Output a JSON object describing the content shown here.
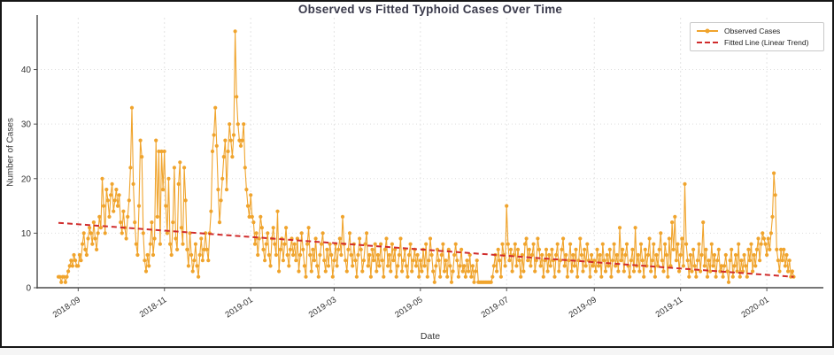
{
  "chart_data": {
    "type": "line",
    "title": "Observed vs Fitted Typhoid Cases Over Time",
    "xlabel": "Date",
    "ylabel": "Number of Cases",
    "x_start_date": "2018-08-18",
    "x_interval_days": 1,
    "xlim": [
      "2018-08-03",
      "2020-02-10"
    ],
    "ylim": [
      0,
      49.5
    ],
    "y_ticks": [
      0,
      10,
      20,
      30,
      40
    ],
    "x_ticks": [
      "2018-09",
      "2018-11",
      "2019-01",
      "2019-03",
      "2019-05",
      "2019-07",
      "2019-09",
      "2019-11",
      "2020-01"
    ],
    "grid": "light dashed, both axes",
    "legend_position": "upper right",
    "series": [
      {
        "name": "Observed Cases",
        "color": "#F0A42D",
        "marker": "circle",
        "values": [
          2,
          2,
          1,
          2,
          2,
          1,
          2,
          3,
          4,
          5,
          4,
          6,
          5,
          4,
          4,
          6,
          5,
          8,
          10,
          7,
          6,
          9,
          11,
          10,
          8,
          12,
          9,
          7,
          10,
          13,
          11,
          20,
          15,
          10,
          18,
          16,
          13,
          17,
          19,
          14,
          16,
          18,
          15,
          17,
          12,
          10,
          14,
          11,
          9,
          13,
          16,
          22,
          33,
          19,
          12,
          8,
          6,
          15,
          27,
          24,
          10,
          5,
          3,
          6,
          4,
          8,
          12,
          6,
          9,
          27,
          13,
          25,
          8,
          25,
          18,
          25,
          15,
          10,
          20,
          8,
          6,
          12,
          22,
          9,
          7,
          19,
          23,
          11,
          8,
          22,
          16,
          7,
          4,
          10,
          6,
          3,
          5,
          8,
          4,
          2,
          6,
          9,
          5,
          7,
          10,
          7,
          5,
          10,
          14,
          25,
          28,
          33,
          26,
          18,
          12,
          16,
          20,
          24,
          27,
          18,
          25,
          30,
          27,
          24,
          28,
          47,
          35,
          30,
          27,
          26,
          27,
          30,
          22,
          18,
          15,
          13,
          17,
          13,
          12,
          8,
          10,
          6,
          9,
          13,
          11,
          7,
          5,
          8,
          10,
          6,
          4,
          9,
          11,
          8,
          6,
          14,
          3,
          7,
          9,
          5,
          8,
          11,
          6,
          4,
          7,
          9,
          6,
          8,
          5,
          9,
          3,
          6,
          10,
          7,
          4,
          2,
          8,
          11,
          6,
          3,
          7,
          5,
          9,
          4,
          2,
          6,
          8,
          10,
          5,
          3,
          7,
          4,
          8,
          6,
          2,
          5,
          8,
          4,
          7,
          9,
          6,
          13,
          8,
          5,
          3,
          7,
          10,
          6,
          4,
          8,
          5,
          2,
          6,
          9,
          7,
          3,
          5,
          8,
          10,
          4,
          6,
          2,
          7,
          5,
          8,
          3,
          6,
          4,
          8,
          5,
          2,
          7,
          9,
          4,
          6,
          3,
          8,
          5,
          7,
          2,
          4,
          6,
          9,
          3,
          5,
          7,
          4,
          2,
          6,
          8,
          3,
          5,
          7,
          4,
          6,
          2,
          5,
          3,
          7,
          4,
          8,
          2,
          5,
          9,
          6,
          3,
          1,
          4,
          7,
          5,
          2,
          6,
          8,
          3,
          5,
          2,
          7,
          4,
          1,
          3,
          6,
          8,
          5,
          2,
          4,
          7,
          3,
          4,
          2,
          5,
          3,
          6,
          2,
          4,
          1,
          3,
          5,
          1,
          1,
          1,
          1,
          1,
          1,
          1,
          1,
          1,
          1,
          2,
          4,
          6,
          3,
          7,
          5,
          2,
          8,
          6,
          4,
          15,
          8,
          5,
          7,
          3,
          6,
          8,
          4,
          7,
          5,
          2,
          6,
          3,
          8,
          9,
          5,
          7,
          4,
          6,
          8,
          3,
          5,
          9,
          7,
          4,
          6,
          2,
          5,
          7,
          3,
          6,
          4,
          7,
          5,
          2,
          6,
          8,
          3,
          5,
          7,
          9,
          4,
          6,
          2,
          5,
          8,
          3,
          6,
          4,
          7,
          2,
          5,
          9,
          6,
          3,
          7,
          4,
          8,
          5,
          2,
          6,
          4,
          5,
          3,
          7,
          4,
          6,
          2,
          8,
          5,
          3,
          6,
          4,
          7,
          2,
          5,
          8,
          4,
          6,
          3,
          11,
          5,
          7,
          3,
          6,
          8,
          4,
          2,
          5,
          7,
          3,
          11,
          4,
          6,
          3,
          8,
          5,
          2,
          7,
          4,
          6,
          9,
          3,
          5,
          8,
          2,
          6,
          4,
          7,
          10,
          5,
          3,
          8,
          6,
          2,
          9,
          4,
          12,
          7,
          13,
          5,
          8,
          3,
          6,
          9,
          4,
          19,
          8,
          5,
          2,
          6,
          3,
          7,
          4,
          2,
          5,
          8,
          3,
          6,
          12,
          4,
          7,
          2,
          5,
          3,
          8,
          4,
          6,
          2,
          5,
          7,
          3,
          4,
          2,
          4,
          6,
          3,
          1,
          5,
          7,
          2,
          4,
          6,
          3,
          8,
          2,
          5,
          3,
          6,
          4,
          2,
          7,
          5,
          8,
          3,
          6,
          4,
          7,
          9,
          5,
          8,
          10,
          9,
          8,
          6,
          9,
          7,
          10,
          13,
          21,
          17,
          7,
          5,
          3,
          7,
          5,
          7,
          4,
          6,
          3,
          5,
          2,
          3,
          2
        ]
      },
      {
        "name": "Fitted Line (Linear Trend)",
        "color": "#D02C2C",
        "style": "dashed",
        "trend": {
          "start": 11.9,
          "end": 2.0
        }
      }
    ]
  }
}
